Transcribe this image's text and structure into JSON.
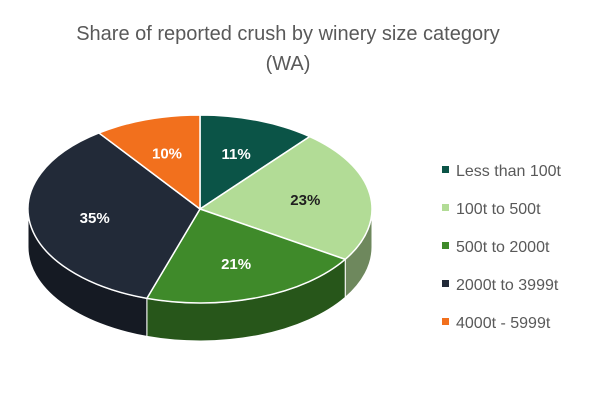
{
  "chart_data": {
    "type": "pie",
    "title": "Share of reported crush by winery size category",
    "subtitle": "(WA)",
    "three_d": true,
    "legend_position": "right",
    "categories": [
      "Less than 100t",
      "100t to 500t",
      "500t to 2000t",
      "2000t to 3999t",
      "4000t - 5999t"
    ],
    "values": [
      11,
      23,
      21,
      35,
      10
    ],
    "labels": [
      "11%",
      "23%",
      "21%",
      "35%",
      "10%"
    ],
    "colors": [
      "#0b5447",
      "#b2dc96",
      "#3f8a2a",
      "#222a38",
      "#f2701d"
    ],
    "label_colors": [
      "#ffffff",
      "#1f1f1f",
      "#ffffff",
      "#ffffff",
      "#ffffff"
    ]
  }
}
